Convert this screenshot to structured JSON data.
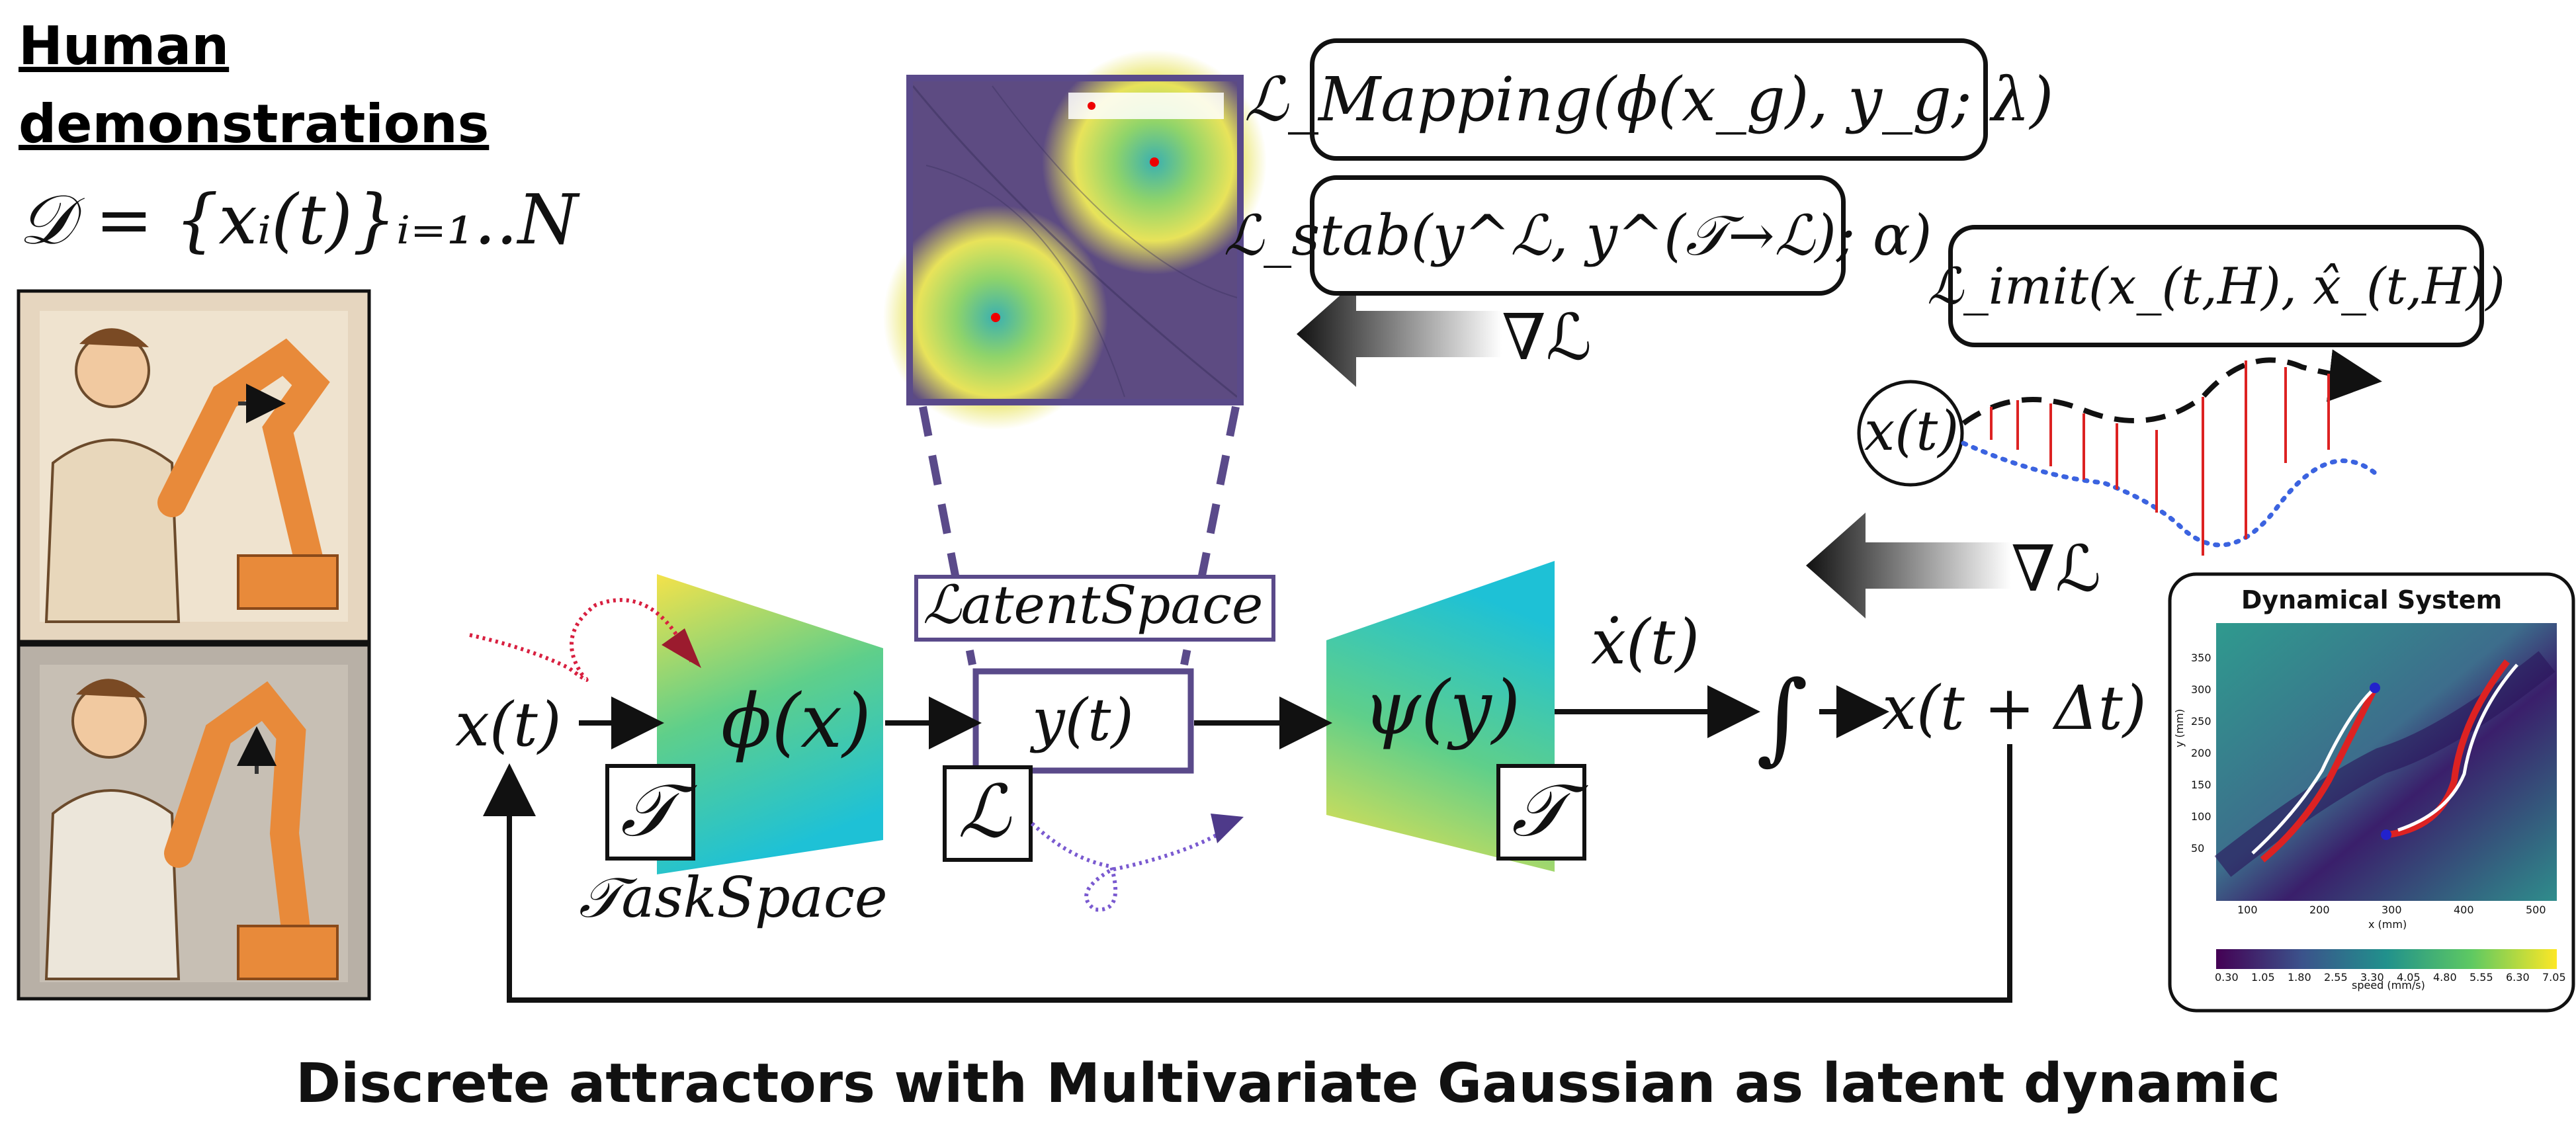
{
  "header": {
    "line1": "Human ",
    "line2": "demonstrations"
  },
  "dataset_formula": "𝒟 = {xᵢ(t)}ᵢ₌₁..N",
  "loss_mapping": "ℒ_Mapping(ϕ(x_g), y_g; λ)",
  "loss_stab": "ℒ_stab(y^ℒ, y^(𝒯→ℒ); α)",
  "loss_imit": "ℒ_imit(x_(t,H), x̂_(t,H))",
  "grad_label": "∇ℒ",
  "flow": {
    "input_x": "x(t)",
    "encoder": "ϕ(x)",
    "latent_y": "y(t)",
    "decoder": "ψ(y)",
    "xdot": "ẋ(t)",
    "integral": "∫",
    "output": "x(t + Δt)",
    "task_symbol": "𝒯",
    "latent_symbol": "ℒ",
    "task_space": "𝒯askSpace",
    "latent_space": "ℒatentSpace",
    "imit_x": "x(t)"
  },
  "inset": {
    "title": "Dynamical System",
    "ylabel": "y (mm)",
    "xlabel": "x (mm)",
    "yticks": [
      "350",
      "300",
      "250",
      "200",
      "150",
      "100",
      "50"
    ],
    "xticks": [
      "100",
      "200",
      "300",
      "400",
      "500"
    ],
    "colorbar_ticks": [
      "0.30",
      "1.05",
      "1.80",
      "2.55",
      "3.30",
      "4.05",
      "4.80",
      "5.55",
      "6.30",
      "7.05"
    ],
    "colorbar_label": "speed (mm/s)"
  },
  "caption": "Discrete attractors with Multivariate Gaussian as latent dynamic",
  "colors": {
    "latent_purple": "#5a4a8a",
    "traj_red": "#dd2222",
    "imit_blue": "#3b63e0",
    "curl_red": "#d82040",
    "curl_purple": "#7a5ad0"
  }
}
